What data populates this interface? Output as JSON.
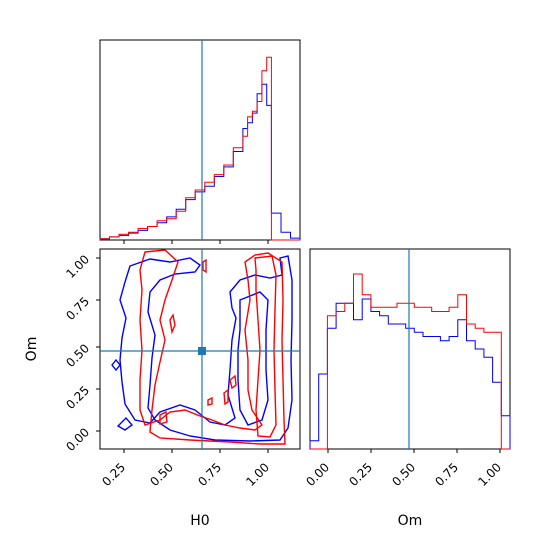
{
  "chart_data": [
    {
      "type": "histogram",
      "panel": "H0 marginal",
      "x_param": "H0",
      "xlim": [
        0.1,
        1.15
      ],
      "truth": 0.65,
      "truth_color": "#1f77b4",
      "bin_edges": [
        0.1,
        0.15,
        0.2,
        0.25,
        0.3,
        0.35,
        0.4,
        0.45,
        0.5,
        0.55,
        0.6,
        0.65,
        0.7,
        0.75,
        0.8,
        0.85,
        0.875,
        0.9,
        0.925,
        0.95,
        0.975,
        1.0,
        1.05,
        1.1,
        1.15
      ],
      "series": [
        {
          "color": "#0000ff",
          "values": [
            0.3,
            0.8,
            1.2,
            1.8,
            2.5,
            3.5,
            4.5,
            6.0,
            8.0,
            10.5,
            12.5,
            14.0,
            16.5,
            19.0,
            23.0,
            29.0,
            30.5,
            33.0,
            38.0,
            40.5,
            35.0,
            7.0,
            2.0,
            0.5
          ]
        },
        {
          "color": "#ff0000",
          "values": [
            0.3,
            0.8,
            1.5,
            2.0,
            3.0,
            3.5,
            5.0,
            5.5,
            7.5,
            11.0,
            13.0,
            15.0,
            17.0,
            19.5,
            24.0,
            27.0,
            32.0,
            33.5,
            36.0,
            44.0,
            47.5,
            0,
            0,
            0
          ]
        }
      ]
    },
    {
      "type": "contour",
      "panel": "H0 vs Om",
      "xlabel": "H0",
      "ylabel": "Om",
      "xlim": [
        0.1,
        1.15
      ],
      "ylim": [
        -0.1,
        1.05
      ],
      "xticks": [
        "0.25",
        "0.50",
        "0.75",
        "1.00"
      ],
      "yticks": [
        "0.00",
        "0.25",
        "0.50",
        "0.75",
        "1.00"
      ],
      "truth": {
        "H0": 0.65,
        "Om": 0.46
      },
      "series": [
        {
          "color": "#0000ff"
        },
        {
          "color": "#ff0000"
        }
      ]
    },
    {
      "type": "histogram",
      "panel": "Om marginal",
      "xlabel": "Om",
      "xlim": [
        -0.1,
        1.05
      ],
      "xticks": [
        "0.00",
        "0.25",
        "0.50",
        "0.75",
        "1.00"
      ],
      "truth": 0.46,
      "bin_edges": [
        -0.1,
        -0.05,
        0.0,
        0.05,
        0.1,
        0.15,
        0.2,
        0.25,
        0.3,
        0.35,
        0.4,
        0.45,
        0.5,
        0.55,
        0.6,
        0.65,
        0.7,
        0.75,
        0.8,
        0.85,
        0.9,
        0.95,
        1.0,
        1.05
      ],
      "series": [
        {
          "color": "#0000ff",
          "values": [
            2,
            18,
            29,
            35,
            35,
            31,
            36,
            33,
            32,
            30,
            30,
            29,
            28,
            27,
            27,
            26,
            27,
            31,
            26,
            24,
            22,
            16,
            8
          ]
        },
        {
          "color": "#ff0000",
          "values": [
            0,
            0,
            32,
            33,
            35,
            42,
            37,
            34,
            34,
            34,
            35,
            35,
            34,
            34,
            33,
            33,
            34,
            37,
            30,
            29,
            28,
            28,
            0
          ]
        }
      ]
    }
  ]
}
